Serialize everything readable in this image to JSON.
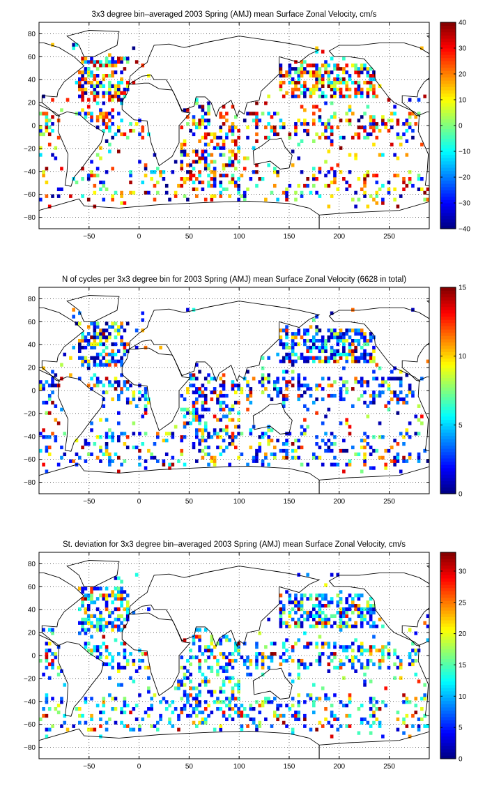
{
  "figure": {
    "colormap": "jet",
    "frame_color": "#000000",
    "grid": "dotted",
    "coastline_color": "#000000"
  },
  "chart_data": [
    {
      "type": "heatmap",
      "title": "3x3 degree bin–averaged 2003 Spring (AMJ) mean Surface Zonal Velocity, cm/s",
      "xlabel": "",
      "ylabel": "",
      "x_ticks": [
        -50,
        0,
        50,
        100,
        150,
        200,
        250
      ],
      "y_ticks": [
        80,
        60,
        40,
        20,
        0,
        -20,
        -40,
        -60,
        -80
      ],
      "xlim": [
        -100,
        290
      ],
      "ylim": [
        -90,
        90
      ],
      "grid": true,
      "colorbar": {
        "range": [
          -40,
          40
        ],
        "ticks": [
          40,
          30,
          20,
          10,
          0,
          -10,
          -20,
          -30,
          -40
        ]
      },
      "bin_size_deg": 3,
      "map": "world",
      "seed": 11,
      "pattern": "velocity"
    },
    {
      "type": "heatmap",
      "title": "N of cycles per 3x3 degree bin for 2003 Spring (AMJ) mean Surface Zonal Velocity (6628 in total)",
      "xlabel": "",
      "ylabel": "",
      "x_ticks": [
        -50,
        0,
        50,
        100,
        150,
        200,
        250
      ],
      "y_ticks": [
        80,
        60,
        40,
        20,
        0,
        -20,
        -40,
        -60,
        -80
      ],
      "xlim": [
        -100,
        290
      ],
      "ylim": [
        -90,
        90
      ],
      "grid": true,
      "colorbar": {
        "range": [
          0,
          15
        ],
        "ticks": [
          15,
          10,
          5,
          0
        ]
      },
      "bin_size_deg": 3,
      "map": "world",
      "seed": 23,
      "pattern": "count"
    },
    {
      "type": "heatmap",
      "title": "St. deviation for 3x3 degree bin–averaged 2003 Spring (AMJ) mean Surface Zonal Velocity, cm/s",
      "xlabel": "",
      "ylabel": "",
      "x_ticks": [
        -50,
        0,
        50,
        100,
        150,
        200,
        250
      ],
      "y_ticks": [
        80,
        60,
        40,
        20,
        0,
        -20,
        -40,
        -60,
        -80
      ],
      "xlim": [
        -100,
        290
      ],
      "ylim": [
        -90,
        90
      ],
      "grid": true,
      "colorbar": {
        "range": [
          0,
          33
        ],
        "ticks": [
          30,
          25,
          20,
          15,
          10,
          5,
          0
        ]
      },
      "bin_size_deg": 3,
      "map": "world",
      "seed": 37,
      "pattern": "std"
    }
  ]
}
